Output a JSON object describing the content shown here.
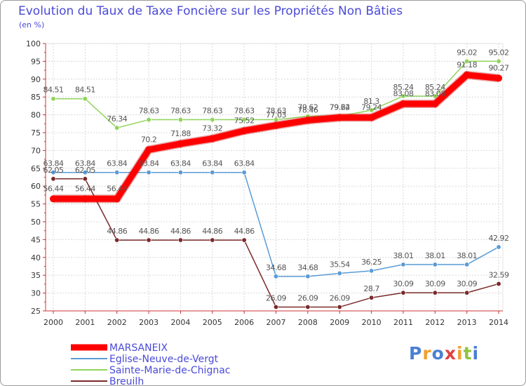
{
  "chart_data": {
    "type": "line",
    "title": "Evolution du Taux de Taxe Foncière sur les Propriétés Non Bâties",
    "ylabel": "(en %)",
    "ylim": [
      25,
      100
    ],
    "yticks": [
      "25",
      "30",
      "35",
      "40",
      "45",
      "50",
      "55",
      "60",
      "65",
      "70",
      "75",
      "80",
      "85",
      "90",
      "95",
      "100"
    ],
    "categories": [
      "2000",
      "2001",
      "2002",
      "2003",
      "2004",
      "2005",
      "2006",
      "2007",
      "2008",
      "2009",
      "2010",
      "2011",
      "2012",
      "2013",
      "2014"
    ],
    "series": [
      {
        "name": "Breuilh",
        "color": "#7a2a2a",
        "values": [
          62.05,
          62.05,
          44.86,
          44.86,
          44.86,
          44.86,
          44.86,
          26.09,
          26.09,
          26.09,
          28.7,
          30.09,
          30.09,
          30.09,
          32.59
        ],
        "labels": [
          "62.05",
          "62.05",
          "44.86",
          "44.86",
          "44.86",
          "44.86",
          "44.86",
          "26.09",
          "26.09",
          "26.09",
          "28.7",
          "30.09",
          "30.09",
          "30.09",
          "32.59"
        ]
      },
      {
        "name": "Eglise-Neuve-de-Vergt",
        "color": "#5b9bd5",
        "values": [
          63.84,
          63.84,
          63.84,
          63.84,
          63.84,
          63.84,
          63.84,
          34.68,
          34.68,
          35.54,
          36.25,
          38.01,
          38.01,
          38.01,
          42.92
        ],
        "labels": [
          "63.84",
          "63.84",
          "63.84",
          "63.84",
          "63.84",
          "63.84",
          "63.84",
          "34.68",
          "34.68",
          "35.54",
          "36.25",
          "38.01",
          "38.01",
          "38.01",
          "42.92"
        ]
      },
      {
        "name": "Sainte-Marie-de-Chignac",
        "color": "#8fd45a",
        "values": [
          84.51,
          84.51,
          76.34,
          78.63,
          78.63,
          78.63,
          78.63,
          78.63,
          79.62,
          79.62,
          81.3,
          85.24,
          85.24,
          95.02,
          95.02
        ],
        "labels": [
          "84.51",
          "84.51",
          "76.34",
          "78.63",
          "78.63",
          "78.63",
          "78.63",
          "78.63",
          "79.62",
          "79.62",
          "81.3",
          "85.24",
          "85.24",
          "95.02",
          "95.02"
        ]
      },
      {
        "name": "MARSANEIX",
        "color": "#ff0000",
        "values": [
          56.44,
          56.44,
          56.44,
          70.2,
          71.88,
          73.32,
          75.52,
          77.03,
          78.46,
          79.24,
          79.24,
          83.08,
          83.08,
          91.18,
          90.27
        ],
        "labels": [
          "56.44",
          "56.44",
          "56.44",
          "70.2",
          "71.88",
          "73.32",
          "75.52",
          "77.03",
          "78.46",
          "79.24",
          "79.24",
          "83.08",
          "83.08",
          "91.18",
          "90.27"
        ]
      }
    ],
    "legend": [
      "MARSANEIX",
      "Eglise-Neuve-de-Vergt",
      "Sainte-Marie-de-Chignac",
      "Breuilh"
    ]
  },
  "logo": {
    "letters": [
      "P",
      "r",
      "o",
      "x",
      "i",
      "t",
      "i"
    ],
    "colors": [
      "#4a7fd4",
      "#f0a030",
      "#4a7fd4",
      "#e04040",
      "#f0a030",
      "#8fc440",
      "#4a7fd4"
    ]
  }
}
